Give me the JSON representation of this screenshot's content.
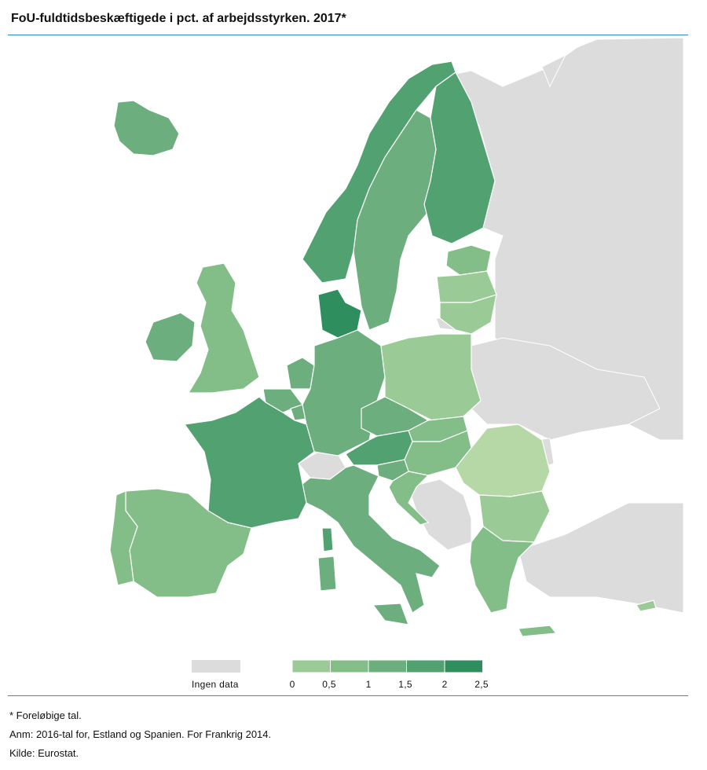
{
  "title": "FoU-fuldtidsbeskæftigede i pct. af arbejdsstyrken. 2017*",
  "colors": {
    "rule": "#2a8fc1",
    "sea": "#ffffff",
    "no_data": "#dcdcdc",
    "border": "#ffffff",
    "scale": [
      "#b6d8a6",
      "#9acb96",
      "#83bd88",
      "#6cae7d",
      "#52a271",
      "#2f8e5e"
    ]
  },
  "legend": {
    "no_data_label": "Ingen data",
    "ticks": [
      "0",
      "0,5",
      "1",
      "1,5",
      "2",
      "2,5"
    ]
  },
  "map": {
    "countries": [
      {
        "name": "Iceland",
        "value": 1.7
      },
      {
        "name": "Norway",
        "value": 2.0
      },
      {
        "name": "Sweden",
        "value": 1.9
      },
      {
        "name": "Finland",
        "value": 2.3
      },
      {
        "name": "Denmark",
        "value": 2.6
      },
      {
        "name": "Estonia",
        "value": 1.0
      },
      {
        "name": "Latvia",
        "value": 0.7
      },
      {
        "name": "Lithuania",
        "value": 0.8
      },
      {
        "name": "Ireland",
        "value": 1.6
      },
      {
        "name": "United Kingdom",
        "value": 1.3
      },
      {
        "name": "Netherlands",
        "value": 1.7
      },
      {
        "name": "Belgium",
        "value": 1.7
      },
      {
        "name": "Luxembourg",
        "value": 1.6
      },
      {
        "name": "Germany",
        "value": 1.8
      },
      {
        "name": "Poland",
        "value": 0.7
      },
      {
        "name": "Czechia",
        "value": 1.6
      },
      {
        "name": "Slovakia",
        "value": 1.1
      },
      {
        "name": "Austria",
        "value": 2.1
      },
      {
        "name": "Hungary",
        "value": 1.1
      },
      {
        "name": "Slovenia",
        "value": 1.9
      },
      {
        "name": "Croatia",
        "value": 1.1
      },
      {
        "name": "Romania",
        "value": 0.4
      },
      {
        "name": "Bulgaria",
        "value": 0.9
      },
      {
        "name": "Greece",
        "value": 1.3
      },
      {
        "name": "Italy",
        "value": 1.5
      },
      {
        "name": "France",
        "value": 2.3
      },
      {
        "name": "Spain",
        "value": 1.2
      },
      {
        "name": "Portugal",
        "value": 1.3
      },
      {
        "name": "Cyprus",
        "value": 0.9
      },
      {
        "name": "Switzerland",
        "value": null
      }
    ]
  },
  "footnotes": {
    "line1": "* Foreløbige tal.",
    "line2": "Anm: 2016-tal for, Estland og Spanien. For Frankrig 2014.",
    "line3": "Kilde: Eurostat."
  }
}
